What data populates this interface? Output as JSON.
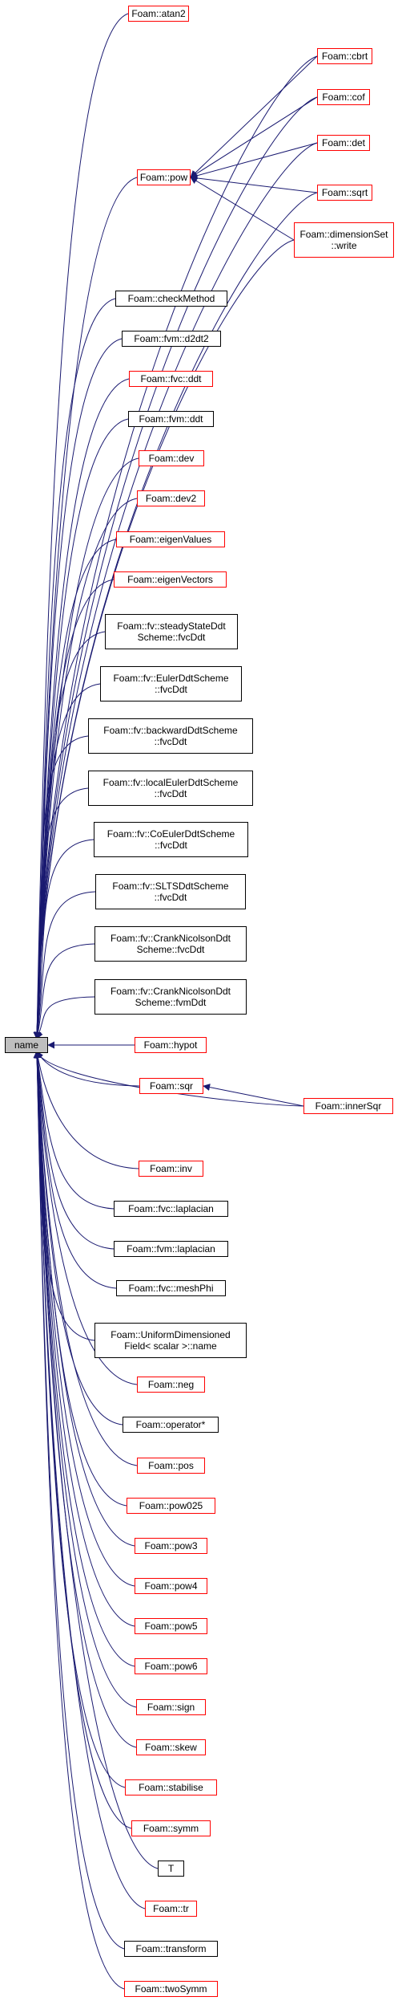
{
  "colors": {
    "edge": "#191970",
    "link_border": "#ff0000",
    "plain_border": "#000000",
    "root_fill": "#bfbfbf"
  },
  "root": {
    "label": "name"
  },
  "nodes": [
    {
      "id": "atan2",
      "label": "Foam::atan2",
      "border": "red"
    },
    {
      "id": "cbrt",
      "label": "Foam::cbrt",
      "border": "red"
    },
    {
      "id": "cof",
      "label": "Foam::cof",
      "border": "red"
    },
    {
      "id": "det",
      "label": "Foam::det",
      "border": "red"
    },
    {
      "id": "pow",
      "label": "Foam::pow",
      "border": "red"
    },
    {
      "id": "sqrt",
      "label": "Foam::sqrt",
      "border": "red"
    },
    {
      "id": "dimensionSetWrite",
      "label": "Foam::dimensionSet\n::write",
      "border": "red"
    },
    {
      "id": "checkMethod",
      "label": "Foam::checkMethod",
      "border": "black"
    },
    {
      "id": "fvmD2dt2",
      "label": "Foam::fvm::d2dt2",
      "border": "black"
    },
    {
      "id": "fvcDdt",
      "label": "Foam::fvc::ddt",
      "border": "red"
    },
    {
      "id": "fvmDdt",
      "label": "Foam::fvm::ddt",
      "border": "black"
    },
    {
      "id": "dev",
      "label": "Foam::dev",
      "border": "red"
    },
    {
      "id": "dev2",
      "label": "Foam::dev2",
      "border": "red"
    },
    {
      "id": "eigenValues",
      "label": "Foam::eigenValues",
      "border": "red"
    },
    {
      "id": "eigenVectors",
      "label": "Foam::eigenVectors",
      "border": "red"
    },
    {
      "id": "steadyState",
      "label": "Foam::fv::steadyStateDdt\nScheme::fvcDdt",
      "border": "black"
    },
    {
      "id": "euler",
      "label": "Foam::fv::EulerDdtScheme\n::fvcDdt",
      "border": "black"
    },
    {
      "id": "backward",
      "label": "Foam::fv::backwardDdtScheme\n::fvcDdt",
      "border": "black"
    },
    {
      "id": "localEuler",
      "label": "Foam::fv::localEulerDdtScheme\n::fvcDdt",
      "border": "black"
    },
    {
      "id": "coEuler",
      "label": "Foam::fv::CoEulerDdtScheme\n::fvcDdt",
      "border": "black"
    },
    {
      "id": "slts",
      "label": "Foam::fv::SLTSDdtScheme\n::fvcDdt",
      "border": "black"
    },
    {
      "id": "crankFvc",
      "label": "Foam::fv::CrankNicolsonDdt\nScheme::fvcDdt",
      "border": "black"
    },
    {
      "id": "crankFvm",
      "label": "Foam::fv::CrankNicolsonDdt\nScheme::fvmDdt",
      "border": "black"
    },
    {
      "id": "hypot",
      "label": "Foam::hypot",
      "border": "red"
    },
    {
      "id": "sqr",
      "label": "Foam::sqr",
      "border": "red"
    },
    {
      "id": "innerSqr",
      "label": "Foam::innerSqr",
      "border": "red"
    },
    {
      "id": "inv",
      "label": "Foam::inv",
      "border": "red"
    },
    {
      "id": "fvcLaplacian",
      "label": "Foam::fvc::laplacian",
      "border": "black"
    },
    {
      "id": "fvmLaplacian",
      "label": "Foam::fvm::laplacian",
      "border": "black"
    },
    {
      "id": "meshPhi",
      "label": "Foam::fvc::meshPhi",
      "border": "black"
    },
    {
      "id": "uniformDim",
      "label": "Foam::UniformDimensioned\nField< scalar >::name",
      "border": "black"
    },
    {
      "id": "neg",
      "label": "Foam::neg",
      "border": "red"
    },
    {
      "id": "operatorStar",
      "label": "Foam::operator*",
      "border": "black"
    },
    {
      "id": "pos",
      "label": "Foam::pos",
      "border": "red"
    },
    {
      "id": "pow025",
      "label": "Foam::pow025",
      "border": "red"
    },
    {
      "id": "pow3",
      "label": "Foam::pow3",
      "border": "red"
    },
    {
      "id": "pow4",
      "label": "Foam::pow4",
      "border": "red"
    },
    {
      "id": "pow5",
      "label": "Foam::pow5",
      "border": "red"
    },
    {
      "id": "pow6",
      "label": "Foam::pow6",
      "border": "red"
    },
    {
      "id": "sign",
      "label": "Foam::sign",
      "border": "red"
    },
    {
      "id": "skew",
      "label": "Foam::skew",
      "border": "red"
    },
    {
      "id": "stabilise",
      "label": "Foam::stabilise",
      "border": "red"
    },
    {
      "id": "symm",
      "label": "Foam::symm",
      "border": "red"
    },
    {
      "id": "T",
      "label": "T",
      "border": "black"
    },
    {
      "id": "tr",
      "label": "Foam::tr",
      "border": "red"
    },
    {
      "id": "transform",
      "label": "Foam::transform",
      "border": "black"
    },
    {
      "id": "twoSymm",
      "label": "Foam::twoSymm",
      "border": "red"
    }
  ],
  "edges": [
    [
      "atan2",
      "name"
    ],
    [
      "cbrt",
      "name"
    ],
    [
      "cof",
      "name"
    ],
    [
      "det",
      "name"
    ],
    [
      "pow",
      "name"
    ],
    [
      "sqrt",
      "name"
    ],
    [
      "dimensionSetWrite",
      "name"
    ],
    [
      "cbrt",
      "pow"
    ],
    [
      "cof",
      "pow"
    ],
    [
      "det",
      "pow"
    ],
    [
      "sqrt",
      "pow"
    ],
    [
      "dimensionSetWrite",
      "pow"
    ],
    [
      "checkMethod",
      "name"
    ],
    [
      "fvmD2dt2",
      "name"
    ],
    [
      "fvcDdt",
      "name"
    ],
    [
      "fvmDdt",
      "name"
    ],
    [
      "dev",
      "name"
    ],
    [
      "dev2",
      "name"
    ],
    [
      "eigenValues",
      "name"
    ],
    [
      "eigenVectors",
      "name"
    ],
    [
      "steadyState",
      "name"
    ],
    [
      "euler",
      "name"
    ],
    [
      "backward",
      "name"
    ],
    [
      "localEuler",
      "name"
    ],
    [
      "coEuler",
      "name"
    ],
    [
      "slts",
      "name"
    ],
    [
      "crankFvc",
      "name"
    ],
    [
      "crankFvm",
      "name"
    ],
    [
      "hypot",
      "name"
    ],
    [
      "sqr",
      "name"
    ],
    [
      "innerSqr",
      "name"
    ],
    [
      "innerSqr",
      "sqr"
    ],
    [
      "inv",
      "name"
    ],
    [
      "fvcLaplacian",
      "name"
    ],
    [
      "fvmLaplacian",
      "name"
    ],
    [
      "meshPhi",
      "name"
    ],
    [
      "uniformDim",
      "name"
    ],
    [
      "neg",
      "name"
    ],
    [
      "operatorStar",
      "name"
    ],
    [
      "pos",
      "name"
    ],
    [
      "pow025",
      "name"
    ],
    [
      "pow3",
      "name"
    ],
    [
      "pow4",
      "name"
    ],
    [
      "pow5",
      "name"
    ],
    [
      "pow6",
      "name"
    ],
    [
      "sign",
      "name"
    ],
    [
      "skew",
      "name"
    ],
    [
      "stabilise",
      "name"
    ],
    [
      "symm",
      "name"
    ],
    [
      "T",
      "name"
    ],
    [
      "tr",
      "name"
    ],
    [
      "transform",
      "name"
    ],
    [
      "twoSymm",
      "name"
    ]
  ]
}
